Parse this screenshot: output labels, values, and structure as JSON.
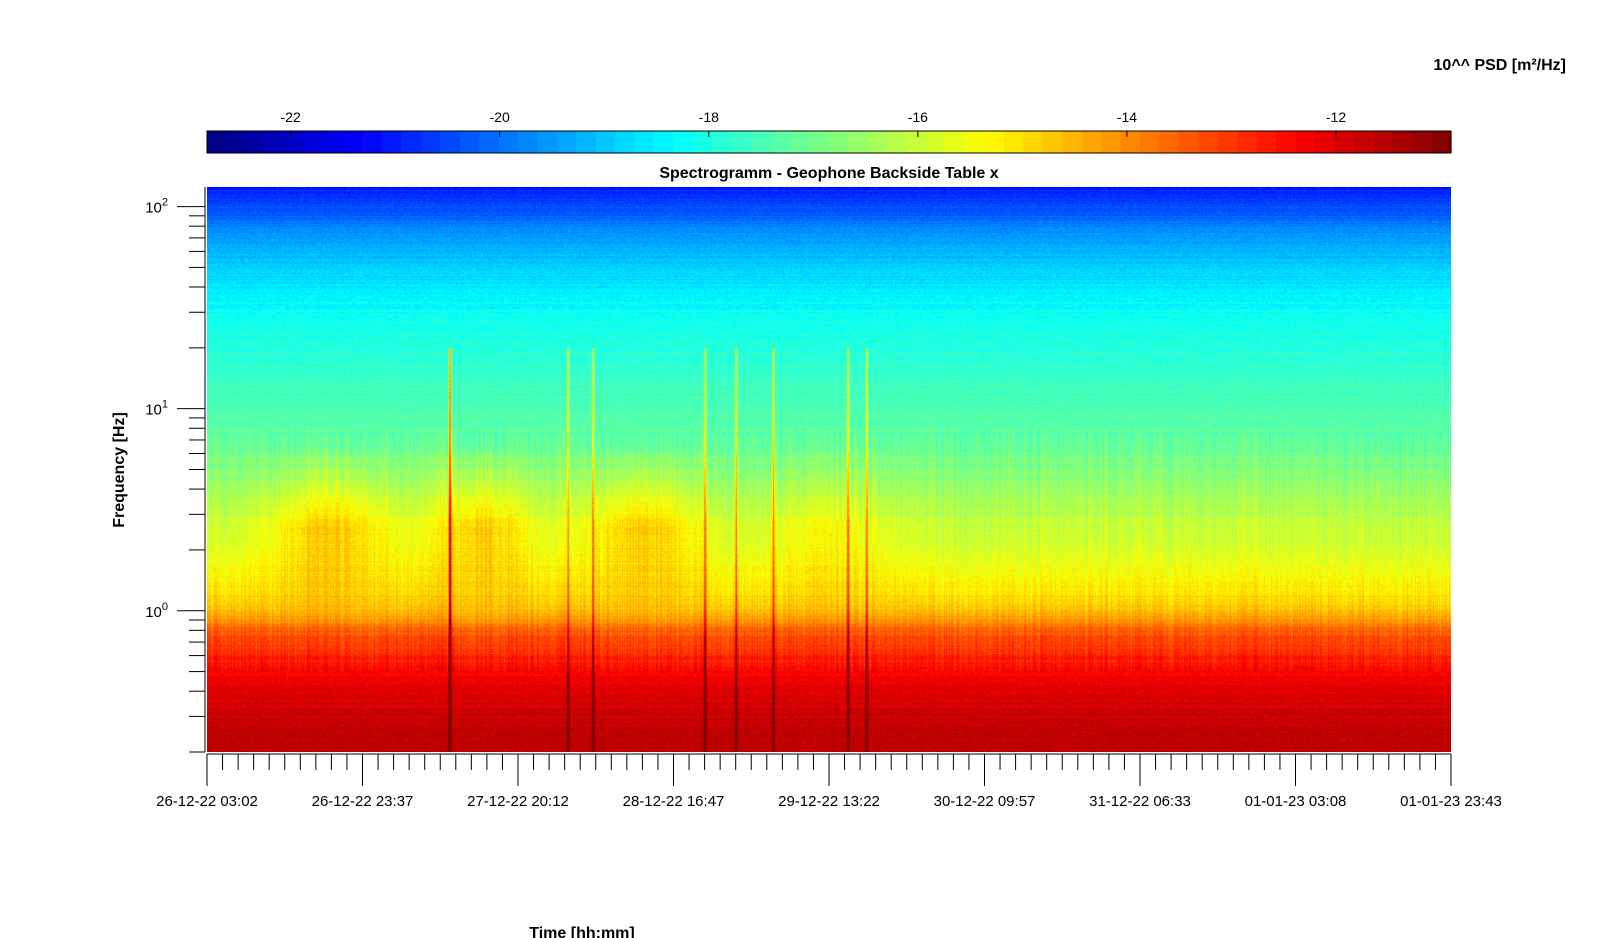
{
  "chart_data": {
    "type": "heatmap",
    "title": "Spectrogramm - Geophone Backside Table x",
    "xlabel": "Time [hh:mm]",
    "ylabel": "Frequency [Hz]",
    "y_scale": "log",
    "ylim_hz": [
      0.2,
      125
    ],
    "y_ticks": [
      {
        "value": 100,
        "label_base": "10",
        "label_exp": "2"
      },
      {
        "value": 10,
        "label_base": "10",
        "label_exp": "1"
      },
      {
        "value": 1,
        "label_base": "10",
        "label_exp": "0"
      }
    ],
    "x_ticks": [
      "26-12-22 03:02",
      "26-12-22 23:37",
      "27-12-22 20:12",
      "28-12-22 16:47",
      "29-12-22 13:22",
      "30-12-22 09:57",
      "31-12-22 06:33",
      "01-01-23 03:08",
      "01-01-23 23:43"
    ],
    "colorbar": {
      "label": "10^^ PSD [m²/Hz]",
      "range": [
        -22.8,
        -10.9
      ],
      "colormap": "jet",
      "ticks": [
        -22,
        -20,
        -18,
        -16,
        -14,
        -12
      ]
    },
    "log10_psd_profile": {
      "frequency_hz": [
        0.2,
        0.3,
        0.4,
        0.5,
        0.6,
        0.8,
        0.95,
        1.1,
        1.5,
        2.0,
        3.0,
        5.0,
        7.0,
        10.0,
        13.0,
        20.0,
        28.0,
        40.0,
        60.0,
        80.0,
        100.0,
        125.0
      ],
      "value": [
        -11.6,
        -11.8,
        -12.0,
        -12.4,
        -12.8,
        -13.5,
        -14.4,
        -14.9,
        -15.4,
        -15.8,
        -16.2,
        -16.8,
        -17.2,
        -17.5,
        -17.6,
        -17.9,
        -18.2,
        -18.6,
        -19.2,
        -19.8,
        -20.5,
        -21.0
      ]
    },
    "events_time_index": [
      0.195,
      0.29,
      0.195,
      0.31,
      0.4,
      0.425,
      0.455,
      0.53,
      0.515
    ]
  }
}
